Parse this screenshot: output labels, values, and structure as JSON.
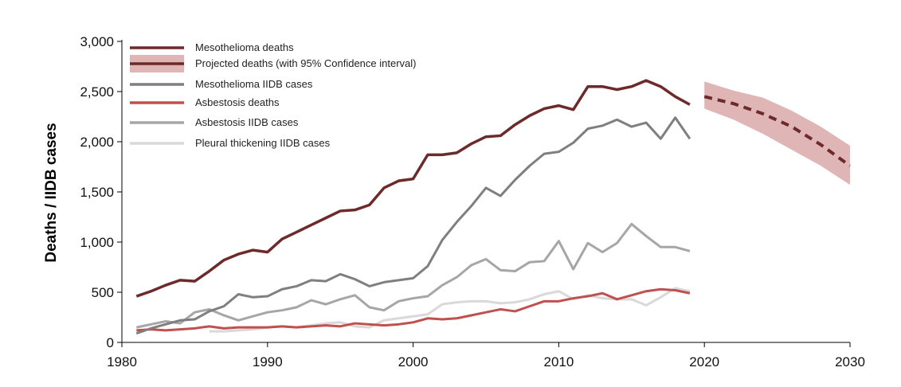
{
  "chart_data": {
    "type": "line",
    "title": "",
    "xlabel": "",
    "ylabel": "Deaths / IIDB cases",
    "xlim": [
      1980,
      2030
    ],
    "ylim": [
      0,
      3000
    ],
    "x_ticks": [
      "1980",
      "1990",
      "2000",
      "2010",
      "2020",
      "2030"
    ],
    "y_ticks": [
      "0",
      "500",
      "1,000",
      "1,500",
      "2,000",
      "2,500",
      "3,000"
    ],
    "grid": false,
    "legend_position": "top-left",
    "series": [
      {
        "name": "Mesothelioma deaths",
        "color": "#6d2a2b",
        "x": [
          1981,
          1982,
          1983,
          1984,
          1985,
          1986,
          1987,
          1988,
          1989,
          1990,
          1991,
          1992,
          1993,
          1994,
          1995,
          1996,
          1997,
          1998,
          1999,
          2000,
          2001,
          2002,
          2003,
          2004,
          2005,
          2006,
          2007,
          2008,
          2009,
          2010,
          2011,
          2012,
          2013,
          2014,
          2015,
          2016,
          2017,
          2018,
          2019
        ],
        "values": [
          460,
          510,
          570,
          620,
          610,
          710,
          820,
          880,
          920,
          900,
          1030,
          1100,
          1170,
          1240,
          1310,
          1320,
          1370,
          1540,
          1610,
          1630,
          1870,
          1870,
          1890,
          1980,
          2050,
          2060,
          2170,
          2260,
          2330,
          2360,
          2320,
          2550,
          2550,
          2520,
          2550,
          2610,
          2550,
          2450,
          2370
        ]
      },
      {
        "name": "Projected deaths (with 95% Confidence interval)",
        "color": "#6d2a2b",
        "band_color": "#dfb6b5",
        "x": [
          2020,
          2022,
          2024,
          2026,
          2028,
          2030
        ],
        "values": [
          2450,
          2380,
          2280,
          2150,
          1970,
          1760
        ],
        "lower": [
          2330,
          2220,
          2080,
          1920,
          1760,
          1570
        ],
        "upper": [
          2600,
          2510,
          2440,
          2310,
          2150,
          1960
        ]
      },
      {
        "name": "Mesothelioma IIDB cases",
        "color": "#7f7f7f",
        "x": [
          1981,
          1982,
          1983,
          1984,
          1985,
          1986,
          1987,
          1988,
          1989,
          1990,
          1991,
          1992,
          1993,
          1994,
          1995,
          1996,
          1997,
          1998,
          1999,
          2000,
          2001,
          2002,
          2003,
          2004,
          2005,
          2006,
          2007,
          2008,
          2009,
          2010,
          2011,
          2012,
          2013,
          2014,
          2015,
          2016,
          2017,
          2018,
          2019
        ],
        "values": [
          90,
          140,
          180,
          220,
          230,
          310,
          360,
          480,
          450,
          460,
          530,
          560,
          620,
          610,
          680,
          630,
          560,
          600,
          620,
          640,
          760,
          1020,
          1200,
          1360,
          1540,
          1460,
          1620,
          1760,
          1880,
          1900,
          1990,
          2130,
          2160,
          2220,
          2150,
          2190,
          2030,
          2240,
          2030
        ]
      },
      {
        "name": "Asbestosis deaths",
        "color": "#c0504d",
        "x": [
          1981,
          1982,
          1983,
          1984,
          1985,
          1986,
          1987,
          1988,
          1989,
          1990,
          1991,
          1992,
          1993,
          1994,
          1995,
          1996,
          1997,
          1998,
          1999,
          2000,
          2001,
          2002,
          2003,
          2004,
          2005,
          2006,
          2007,
          2008,
          2009,
          2010,
          2011,
          2012,
          2013,
          2014,
          2015,
          2016,
          2017,
          2018,
          2019
        ],
        "values": [
          120,
          130,
          120,
          130,
          140,
          160,
          140,
          150,
          150,
          150,
          160,
          150,
          160,
          170,
          160,
          190,
          180,
          170,
          180,
          200,
          240,
          230,
          240,
          270,
          300,
          330,
          310,
          360,
          410,
          410,
          440,
          460,
          490,
          430,
          470,
          510,
          530,
          520,
          490
        ]
      },
      {
        "name": "Asbestosis IIDB cases",
        "color": "#a6a6a6",
        "x": [
          1981,
          1982,
          1983,
          1984,
          1985,
          1986,
          1987,
          1988,
          1989,
          1990,
          1991,
          1992,
          1993,
          1994,
          1995,
          1996,
          1997,
          1998,
          1999,
          2000,
          2001,
          2002,
          2003,
          2004,
          2005,
          2006,
          2007,
          2008,
          2009,
          2010,
          2011,
          2012,
          2013,
          2014,
          2015,
          2016,
          2017,
          2018,
          2019
        ],
        "values": [
          150,
          180,
          210,
          190,
          300,
          330,
          270,
          220,
          260,
          300,
          320,
          350,
          420,
          380,
          430,
          470,
          350,
          320,
          410,
          440,
          460,
          570,
          650,
          770,
          830,
          720,
          710,
          800,
          810,
          1010,
          730,
          990,
          900,
          990,
          1180,
          1060,
          950,
          950,
          910
        ]
      },
      {
        "name": "Pleural thickening IIDB cases",
        "color": "#d9d9d9",
        "x": [
          1986,
          1987,
          1988,
          1989,
          1990,
          1991,
          1992,
          1993,
          1994,
          1995,
          1996,
          1997,
          1998,
          1999,
          2000,
          2001,
          2002,
          2003,
          2004,
          2005,
          2006,
          2007,
          2008,
          2009,
          2010,
          2011,
          2012,
          2013,
          2014,
          2015,
          2016,
          2017,
          2018,
          2019
        ],
        "values": [
          110,
          110,
          120,
          130,
          150,
          160,
          150,
          170,
          190,
          200,
          160,
          150,
          220,
          240,
          260,
          280,
          380,
          400,
          410,
          410,
          390,
          400,
          430,
          480,
          510,
          430,
          470,
          440,
          430,
          430,
          370,
          450,
          540,
          510
        ]
      }
    ]
  }
}
